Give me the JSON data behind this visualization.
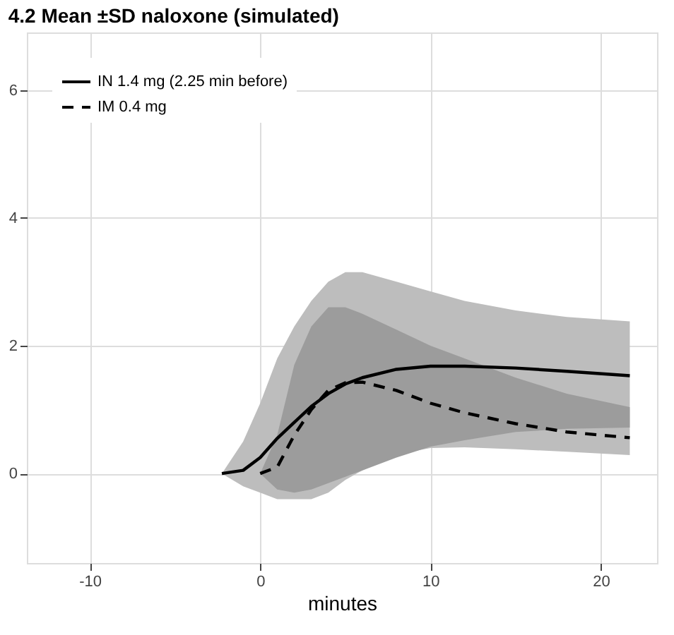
{
  "chart_data": {
    "type": "line",
    "title": "4.2 Mean ±SD naloxone (simulated)",
    "xlabel": "minutes",
    "xlim": [
      -13.7,
      23.3
    ],
    "xticks": [
      -10,
      0,
      10,
      20
    ],
    "ylim": [
      -1.4,
      6.9
    ],
    "yticks": [
      0,
      2,
      4,
      6
    ],
    "grid": true,
    "legend": "top left",
    "series": [
      {
        "name": "IN 1.4 mg (2.25 min before)",
        "color": "#000000",
        "line_style": "solid",
        "x": [
          -2.25,
          -1,
          0,
          1,
          2,
          3,
          4,
          5,
          6,
          8,
          10,
          12,
          15,
          18,
          21.7
        ],
        "values": [
          0,
          0.05,
          0.25,
          0.55,
          0.8,
          1.05,
          1.25,
          1.4,
          1.5,
          1.63,
          1.68,
          1.68,
          1.65,
          1.6,
          1.53
        ],
        "lower": [
          0,
          -0.2,
          -0.3,
          -0.4,
          -0.4,
          -0.4,
          -0.3,
          -0.1,
          0.05,
          0.3,
          0.4,
          0.41,
          0.38,
          0.34,
          0.29
        ],
        "upper": [
          0,
          0.5,
          1.1,
          1.8,
          2.3,
          2.7,
          3.0,
          3.15,
          3.15,
          3.0,
          2.85,
          2.7,
          2.55,
          2.45,
          2.38
        ]
      },
      {
        "name": "IM 0.4 mg",
        "color": "#000000",
        "line_style": "dashed",
        "x": [
          0,
          1,
          2,
          3,
          4,
          5,
          6,
          8,
          10,
          12,
          15,
          18,
          21.7
        ],
        "values": [
          0,
          0.1,
          0.6,
          1.0,
          1.3,
          1.42,
          1.43,
          1.3,
          1.1,
          0.95,
          0.78,
          0.65,
          0.56
        ],
        "lower": [
          0,
          -0.25,
          -0.3,
          -0.25,
          -0.15,
          -0.05,
          0.05,
          0.25,
          0.42,
          0.52,
          0.65,
          0.7,
          0.72
        ],
        "upper": [
          0,
          0.6,
          1.7,
          2.3,
          2.6,
          2.6,
          2.5,
          2.25,
          2.0,
          1.8,
          1.5,
          1.25,
          1.04
        ]
      }
    ]
  }
}
